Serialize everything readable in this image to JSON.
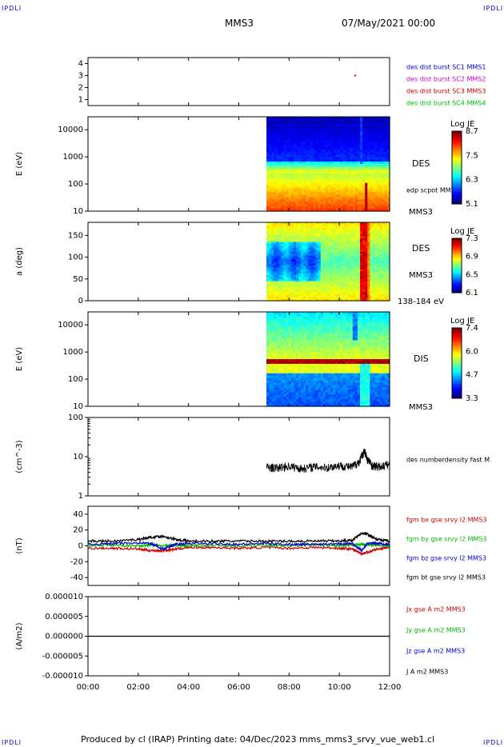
{
  "corners": {
    "tl": "IPDLI",
    "tr": "IPDLI",
    "bl": "IPDLI",
    "br": "IPDLI"
  },
  "header": {
    "spacecraft": "MMS3",
    "date": "07/May/2021 00:00"
  },
  "footer": {
    "text": "Produced by cl (IRAP)   Printing date: 04/Dec/2023   mms_mms3_srvy_vue_web1.cl"
  },
  "colors": {
    "sc1": "#0000cc",
    "sc2": "#cc00cc",
    "sc3": "#cc0000",
    "sc4": "#00bb00",
    "black": "#000000"
  },
  "chart_data": [
    {
      "type": "scatter",
      "panel": "spacecraft",
      "yticks": [
        "4",
        "3",
        "2",
        "1"
      ],
      "ylim": [
        0.5,
        4.5
      ],
      "legend": [
        {
          "name": "des dist burst SC1 MMS1",
          "color": "#0000cc"
        },
        {
          "name": "des dist burst SC2 MMS2",
          "color": "#cc00cc"
        },
        {
          "name": "des dist burst SC3 MMS3",
          "color": "#cc0000"
        },
        {
          "name": "des dist burst SC4 MMS4",
          "color": "#00bb00"
        }
      ],
      "points": [
        {
          "x": 10.6,
          "y": 3
        }
      ]
    },
    {
      "type": "heatmap",
      "panel": "des-energy",
      "ylabel": "E (eV)",
      "yticks": [
        "10000",
        "1000",
        "100",
        "10"
      ],
      "ylim": [
        10,
        30000
      ],
      "yscale": "log",
      "data_start": 7.1,
      "instrument": "DES",
      "spacecraft": "MMS3",
      "overlay": "edp scpot MMS3",
      "colorbar": {
        "title": "Log JE",
        "ticks": [
          "8.7",
          "7.5",
          "6.3",
          "5.1"
        ]
      }
    },
    {
      "type": "heatmap",
      "panel": "des-pitch",
      "ylabel": "a (deg)",
      "yticks": [
        "150",
        "100",
        "50",
        "0"
      ],
      "ylim": [
        0,
        180
      ],
      "data_start": 7.1,
      "instrument": "DES",
      "spacecraft": "MMS3",
      "energy_range": "138-184 eV",
      "colorbar": {
        "title": "Log JE",
        "ticks": [
          "7.3",
          "6.9",
          "6.5",
          "6.1"
        ]
      }
    },
    {
      "type": "heatmap",
      "panel": "dis-energy",
      "ylabel": "E (eV)",
      "yticks": [
        "10000",
        "1000",
        "100",
        "10"
      ],
      "ylim": [
        10,
        30000
      ],
      "yscale": "log",
      "data_start": 7.1,
      "instrument": "DIS",
      "spacecraft": "MMS3",
      "colorbar": {
        "title": "Log JE",
        "ticks": [
          "7.4",
          "6.0",
          "4.7",
          "3.3"
        ]
      }
    },
    {
      "type": "line",
      "panel": "density",
      "ylabel": "(cm^-3)",
      "yticks": [
        "100",
        "10",
        "1"
      ],
      "ylim": [
        1,
        100
      ],
      "yscale": "log",
      "series": [
        {
          "name": "des numberdensity fast M",
          "color": "#000000",
          "x": [
            7.1,
            7.5,
            8.0,
            8.5,
            9.0,
            9.5,
            10.0,
            10.5,
            10.8,
            11.0,
            11.1,
            11.3,
            11.6,
            12.0
          ],
          "y": [
            5.5,
            5.2,
            5.8,
            5.0,
            5.6,
            5.3,
            6.0,
            5.5,
            7.5,
            14,
            9,
            6,
            5.5,
            6.5
          ]
        }
      ]
    },
    {
      "type": "line",
      "panel": "fgm",
      "ylabel": "(nT)",
      "yticks": [
        "40",
        "20",
        "0",
        "-20",
        "-40"
      ],
      "ylim": [
        -50,
        50
      ],
      "x": [
        0,
        1,
        2,
        2.5,
        3,
        3.5,
        4,
        5,
        6,
        7,
        8,
        9,
        10,
        10.5,
        10.9,
        11.1,
        11.5,
        12
      ],
      "series": [
        {
          "name": "fgm bx gse srvy l2 MMS3",
          "color": "#cc0000",
          "y": [
            -3,
            -3,
            -4,
            -6,
            -6,
            -4,
            -2,
            -2,
            -3,
            -2,
            -3,
            -2,
            -3,
            -4,
            -10,
            -8,
            -4,
            -2
          ]
        },
        {
          "name": "fgm by gse srvy l2 MMS3",
          "color": "#00bb00",
          "y": [
            1,
            1,
            0,
            1,
            0,
            1,
            0,
            1,
            0,
            1,
            0,
            1,
            0,
            1,
            2,
            1,
            1,
            0
          ]
        },
        {
          "name": "fgm bz gse srvy l2 MMS3",
          "color": "#0000cc",
          "y": [
            2,
            3,
            4,
            3,
            -4,
            2,
            3,
            3,
            2,
            3,
            2,
            2,
            3,
            3,
            -6,
            3,
            3,
            2
          ]
        },
        {
          "name": "fgm bt gse srvy l2 MMS3",
          "color": "#000000",
          "y": [
            6,
            6,
            8,
            11,
            12,
            8,
            6,
            6,
            6,
            6,
            6,
            6,
            6,
            7,
            16,
            15,
            8,
            6
          ]
        }
      ]
    },
    {
      "type": "line",
      "panel": "current",
      "ylabel": "(A/m2)",
      "yticks": [
        "0.000010",
        "0.000005",
        "0.000000",
        "-0.000005",
        "-0.000010"
      ],
      "ylim": [
        -1e-05,
        1e-05
      ],
      "legend": [
        {
          "name": "Jx gse A m2 MMS3",
          "color": "#cc0000"
        },
        {
          "name": "Jy gse A m2 MMS3",
          "color": "#00bb00"
        },
        {
          "name": "Jz gse A m2 MMS3",
          "color": "#0000cc"
        },
        {
          "name": "J A m2 MMS3",
          "color": "#000000"
        }
      ],
      "x": [
        0,
        2,
        3,
        5,
        7,
        9,
        10.5,
        11,
        12
      ],
      "y": [
        0,
        0,
        0,
        0,
        0,
        0,
        0,
        0,
        0
      ]
    }
  ],
  "xaxis": {
    "ticks": [
      "00:00",
      "02:00",
      "04:00",
      "06:00",
      "08:00",
      "10:00",
      "12:00"
    ],
    "xlim": [
      0,
      12
    ]
  }
}
